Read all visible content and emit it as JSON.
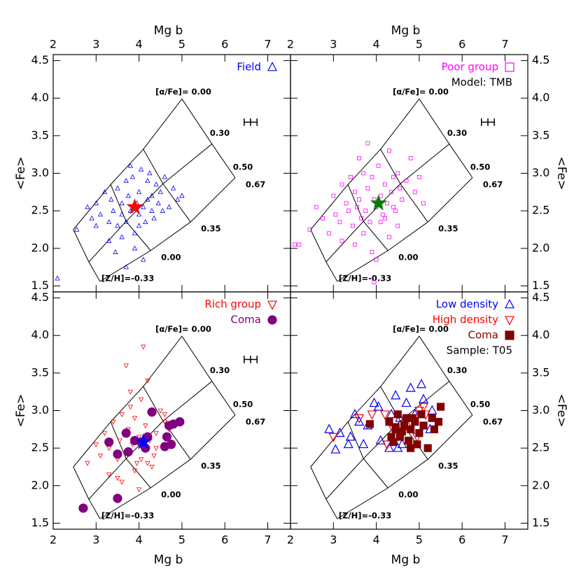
{
  "model_grid": {
    "alpha_labels": [
      "[α/Fe]= 0.00",
      "0.30",
      "0.50"
    ],
    "zh_labels": [
      "[Z/H]=-0.33",
      "0.00",
      "0.35",
      "0.67"
    ],
    "mgb": [
      [
        2.47,
        3.34,
        4.1,
        5.0
      ],
      [
        2.83,
        3.7,
        4.56,
        5.7
      ],
      [
        3.09,
        4.27,
        5.2,
        6.24
      ]
    ],
    "fe": [
      [
        2.25,
        2.85,
        3.32,
        3.99
      ],
      [
        1.82,
        2.36,
        2.86,
        3.39
      ],
      [
        1.56,
        1.97,
        2.35,
        2.94
      ]
    ]
  },
  "chart_data": [
    {
      "type": "scatter",
      "xlabel": "Mg b",
      "ylabel": "<Fe>",
      "xlim": [
        2,
        7.53
      ],
      "ylim": [
        1.42,
        4.58
      ],
      "xticks": [
        2,
        3,
        4,
        5,
        6,
        7
      ],
      "yticks": [
        {
          "value": 1.5,
          "label": "1.5"
        },
        {
          "value": 2,
          "label": "2.0"
        },
        {
          "value": 2.5,
          "label": "2.5"
        },
        {
          "value": 3,
          "label": "3.0"
        },
        {
          "value": 3.5,
          "label": "3.5"
        },
        {
          "value": 4,
          "label": "4.0"
        },
        {
          "value": 4.5,
          "label": "4.5"
        }
      ],
      "series": [
        {
          "name": "Field",
          "color": "#0000ff",
          "marker": "open-triangle",
          "marker_size": 3,
          "x": [
            2.1,
            2.55,
            2.8,
            2.9,
            3.0,
            3.1,
            3.2,
            3.3,
            3.35,
            3.4,
            3.5,
            3.5,
            3.6,
            3.6,
            3.7,
            3.7,
            3.75,
            3.8,
            3.85,
            3.9,
            3.95,
            4.0,
            4.0,
            4.05,
            4.1,
            4.15,
            4.2,
            4.2,
            4.3,
            4.3,
            4.4,
            4.45,
            4.5,
            4.6,
            4.7,
            4.8,
            4.9,
            5.0,
            3.3,
            3.6,
            3.9,
            4.1,
            4.35,
            3.45,
            3.8,
            4.25,
            4.55,
            3.0,
            3.7,
            4.0
          ],
          "y": [
            1.6,
            2.25,
            2.55,
            2.4,
            2.6,
            2.45,
            2.75,
            2.35,
            2.65,
            2.5,
            2.8,
            2.3,
            2.6,
            2.45,
            2.9,
            2.35,
            2.7,
            2.5,
            2.95,
            2.2,
            2.6,
            2.75,
            2.45,
            3.05,
            2.55,
            2.35,
            2.9,
            2.65,
            2.7,
            2.5,
            2.85,
            2.6,
            2.75,
            2.95,
            2.55,
            2.8,
            2.65,
            2.7,
            2.1,
            2.15,
            2.0,
            1.85,
            2.4,
            1.95,
            3.1,
            3.0,
            2.5,
            2.3,
            1.75,
            2.3
          ]
        }
      ],
      "mean_point": {
        "x": 3.9,
        "y": 2.55,
        "color": "#ff0000"
      },
      "errorbar": {
        "x": 6.6,
        "y": 3.68,
        "xerr": 0.15,
        "yerr": 0.05
      }
    },
    {
      "type": "scatter",
      "xlabel": "Mg b",
      "ylabel": "<Fe>",
      "xlim": [
        2,
        7.53
      ],
      "ylim": [
        1.42,
        4.58
      ],
      "xticks": [
        2,
        3,
        4,
        5,
        6,
        7
      ],
      "yticks": [
        {
          "value": 1.5,
          "label": "1.5"
        },
        {
          "value": 2,
          "label": "2.0"
        },
        {
          "value": 2.5,
          "label": "2.5"
        },
        {
          "value": 3,
          "label": "3.0"
        },
        {
          "value": 3.5,
          "label": "3.5"
        },
        {
          "value": 4,
          "label": "4.0"
        },
        {
          "value": 4.5,
          "label": "4.5"
        }
      ],
      "annotation": "Model: TMB",
      "series": [
        {
          "name": "Poor group",
          "color": "#ff00ff",
          "marker": "open-square",
          "marker_size": 2.5,
          "x": [
            2.1,
            2.2,
            2.45,
            2.6,
            2.75,
            2.9,
            3.0,
            3.05,
            3.15,
            3.2,
            3.3,
            3.35,
            3.4,
            3.45,
            3.5,
            3.55,
            3.6,
            3.65,
            3.7,
            3.75,
            3.8,
            3.85,
            3.9,
            3.95,
            4.0,
            4.05,
            4.1,
            4.15,
            4.2,
            4.25,
            4.3,
            4.35,
            4.4,
            4.45,
            4.5,
            4.55,
            4.6,
            4.7,
            4.8,
            4.9,
            5.0,
            5.1,
            3.2,
            3.5,
            3.7,
            3.9,
            4.1,
            4.3,
            4.5,
            3.8,
            4.0,
            4.2,
            3.6,
            4.4,
            3.95
          ],
          "y": [
            2.05,
            2.05,
            2.25,
            2.55,
            2.4,
            2.2,
            2.7,
            2.45,
            2.35,
            2.85,
            2.6,
            2.5,
            2.95,
            2.3,
            2.75,
            2.55,
            2.65,
            2.4,
            3.0,
            2.5,
            2.8,
            2.35,
            2.95,
            2.65,
            2.55,
            3.1,
            2.7,
            2.45,
            2.85,
            2.6,
            3.3,
            2.75,
            2.95,
            2.5,
            3.0,
            2.8,
            2.65,
            2.9,
            3.2,
            2.75,
            2.95,
            2.6,
            2.1,
            2.05,
            2.2,
            1.95,
            2.35,
            2.15,
            2.3,
            3.4,
            1.85,
            2.4,
            3.2,
            2.55,
            1.55
          ]
        }
      ],
      "mean_point": {
        "x": 4.05,
        "y": 2.6,
        "color": "#008000"
      },
      "errorbar": {
        "x": 6.6,
        "y": 3.68,
        "xerr": 0.15,
        "yerr": 0.05
      }
    },
    {
      "type": "scatter",
      "xlabel": "Mg b",
      "ylabel": "<Fe>",
      "xlim": [
        2,
        7.53
      ],
      "ylim": [
        1.42,
        4.58
      ],
      "xticks": [
        2,
        3,
        4,
        5,
        6,
        7
      ],
      "yticks": [
        {
          "value": 1.5,
          "label": "1.5"
        },
        {
          "value": 2,
          "label": "2.0"
        },
        {
          "value": 2.5,
          "label": "2.5"
        },
        {
          "value": 3,
          "label": "3.0"
        },
        {
          "value": 3.5,
          "label": "3.5"
        },
        {
          "value": 4,
          "label": "4.0"
        },
        {
          "value": 4.5,
          "label": "4.5"
        }
      ],
      "series": [
        {
          "name": "Rich group",
          "color": "#ff0000",
          "marker": "open-down-triangle",
          "marker_size": 3,
          "x": [
            2.8,
            3.0,
            3.1,
            3.2,
            3.3,
            3.4,
            3.5,
            3.55,
            3.6,
            3.7,
            3.75,
            3.8,
            3.85,
            3.9,
            3.95,
            4.0,
            4.05,
            4.1,
            4.15,
            4.2,
            4.25,
            4.3,
            4.35,
            4.4,
            4.5,
            4.6,
            4.7,
            3.3,
            3.6,
            3.9,
            4.0,
            4.2,
            4.4,
            3.7,
            4.1,
            3.5,
            4.3,
            3.8,
            4.05,
            4.6
          ],
          "y": [
            2.3,
            2.55,
            2.4,
            2.7,
            2.5,
            2.85,
            2.35,
            2.6,
            2.95,
            2.45,
            2.75,
            3.05,
            2.55,
            2.9,
            2.3,
            2.65,
            3.15,
            2.5,
            2.8,
            3.4,
            2.6,
            2.95,
            2.4,
            2.7,
            3.0,
            2.85,
            2.75,
            2.15,
            2.05,
            2.2,
            1.95,
            2.3,
            2.5,
            3.6,
            3.85,
            2.1,
            2.25,
            3.25,
            2.35,
            2.95
          ]
        },
        {
          "name": "Coma",
          "color": "#800080",
          "marker": "filled-circle",
          "marker_size": 6,
          "x": [
            2.7,
            3.5,
            3.3,
            3.5,
            3.75,
            3.9,
            4.05,
            4.2,
            4.3,
            4.6,
            4.65,
            4.7,
            4.75,
            4.8,
            4.95,
            3.7,
            4.15
          ],
          "y": [
            1.7,
            1.83,
            2.58,
            2.42,
            2.45,
            2.6,
            2.58,
            2.65,
            2.98,
            2.52,
            2.65,
            2.8,
            2.55,
            2.82,
            2.85,
            2.7,
            2.5
          ]
        }
      ],
      "mean_point": {
        "x": 4.1,
        "y": 2.58,
        "color": "#0000ff"
      },
      "errorbar": {
        "x": 6.6,
        "y": 3.68,
        "xerr": 0.15,
        "yerr": 0.05
      }
    },
    {
      "type": "scatter",
      "xlabel": "Mg b",
      "ylabel": "<Fe>",
      "xlim": [
        2,
        7.53
      ],
      "ylim": [
        1.42,
        4.58
      ],
      "xticks": [
        2,
        3,
        4,
        5,
        6,
        7
      ],
      "yticks": [
        {
          "value": 1.5,
          "label": "1.5"
        },
        {
          "value": 2,
          "label": "2.0"
        },
        {
          "value": 2.5,
          "label": "2.5"
        },
        {
          "value": 3,
          "label": "3.0"
        },
        {
          "value": 3.5,
          "label": "3.5"
        },
        {
          "value": 4,
          "label": "4.0"
        },
        {
          "value": 4.5,
          "label": "4.5"
        }
      ],
      "annotation": "Sample: T05",
      "series": [
        {
          "name": "Low density",
          "color": "#0000ff",
          "marker": "open-triangle",
          "marker_size": 6,
          "x": [
            2.9,
            3.15,
            3.05,
            3.35,
            3.5,
            3.6,
            3.7,
            3.8,
            3.95,
            4.05,
            4.1,
            4.3,
            4.35,
            4.45,
            4.55,
            4.6,
            4.7,
            4.8,
            4.9,
            5.05,
            5.1,
            5.25,
            5.3,
            4.5,
            3.4
          ],
          "y": [
            2.75,
            2.7,
            2.48,
            2.55,
            2.95,
            2.85,
            2.55,
            2.8,
            3.1,
            3.05,
            2.6,
            2.5,
            2.95,
            3.2,
            2.9,
            2.55,
            3.1,
            3.3,
            2.95,
            3.35,
            3.15,
            2.75,
            3.0,
            2.5,
            2.65
          ]
        },
        {
          "name": "High density",
          "color": "#ff0000",
          "marker": "open-down-triangle",
          "marker_size": 6,
          "x": [
            3.0,
            3.6,
            3.9,
            4.2,
            4.4,
            4.6,
            4.8,
            5.0,
            5.1,
            5.15,
            4.25,
            4.95
          ],
          "y": [
            2.65,
            2.9,
            2.95,
            2.95,
            2.75,
            2.7,
            2.85,
            3.0,
            3.05,
            2.95,
            2.55,
            2.65
          ]
        },
        {
          "name": "Coma",
          "color": "#800000",
          "marker": "filled-square",
          "marker_size": 5,
          "x": [
            3.85,
            4.3,
            4.35,
            4.4,
            4.45,
            4.5,
            4.55,
            4.6,
            4.65,
            4.7,
            4.75,
            4.8,
            4.85,
            4.9,
            4.95,
            5.0,
            5.05,
            5.1,
            5.2,
            5.3,
            5.35,
            5.45,
            5.5,
            4.8,
            4.45
          ],
          "y": [
            2.82,
            2.85,
            2.65,
            2.58,
            2.75,
            2.95,
            2.65,
            2.72,
            2.8,
            2.9,
            2.6,
            2.75,
            2.9,
            2.85,
            2.55,
            2.7,
            2.95,
            2.8,
            2.5,
            2.9,
            2.75,
            2.85,
            3.05,
            2.5,
            2.78
          ]
        }
      ]
    }
  ]
}
